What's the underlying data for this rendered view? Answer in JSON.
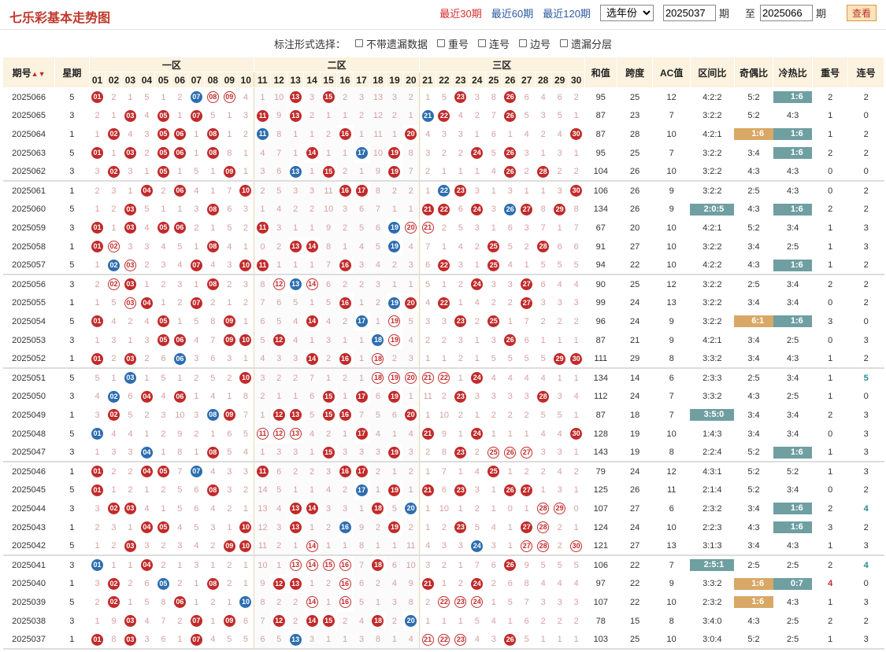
{
  "title": "七乐彩基本走势图",
  "nav": {
    "recent30": "最近30期",
    "recent60": "最近60期",
    "recent120": "最近120期",
    "year": "选年份",
    "from": "2025037",
    "qi1": "期",
    "to_label": "至",
    "to": "2025066",
    "qi2": "期",
    "view": "查看"
  },
  "options": {
    "label": "标注形式选择：",
    "items": [
      "不带遗漏数据",
      "重号",
      "连号",
      "边号",
      "遗漏分层"
    ]
  },
  "header": {
    "issue": "期号",
    "week": "星期",
    "zone1": "一区",
    "zone2": "二区",
    "zone3": "三区",
    "sum": "和值",
    "span": "跨度",
    "ac": "AC值",
    "zone_ratio": "区间比",
    "odd_even": "奇偶比",
    "hot_cold": "冷热比",
    "repeat": "重号",
    "consec": "连号"
  },
  "numbers": [
    "01",
    "02",
    "03",
    "04",
    "05",
    "06",
    "07",
    "08",
    "09",
    "10",
    "11",
    "12",
    "13",
    "14",
    "15",
    "16",
    "17",
    "18",
    "19",
    "20",
    "21",
    "22",
    "23",
    "24",
    "25",
    "26",
    "27",
    "28",
    "29",
    "30"
  ],
  "rows": [
    {
      "issue": "2025066",
      "week": "5",
      "red": [
        1,
        13,
        15,
        23,
        26
      ],
      "blue": [
        7
      ],
      "open": [
        8,
        9
      ],
      "sum": "95",
      "span": "25",
      "ac": "12",
      "zr": "4:2:2",
      "oe": "5:2",
      "hc": "1:6",
      "hct": "g",
      "rep": "2",
      "con": "2"
    },
    {
      "issue": "2025065",
      "week": "3",
      "red": [
        3,
        5,
        7,
        11,
        13,
        22,
        26
      ],
      "blue": [
        21
      ],
      "open": [],
      "sum": "87",
      "span": "23",
      "ac": "7",
      "zr": "3:2:2",
      "oe": "5:2",
      "hc": "4:3",
      "rep": "1",
      "con": "0"
    },
    {
      "issue": "2025064",
      "week": "1",
      "red": [
        2,
        5,
        6,
        8,
        16,
        20,
        30
      ],
      "blue": [
        11
      ],
      "open": [],
      "sum": "87",
      "span": "28",
      "ac": "10",
      "zr": "4:2:1",
      "oe": "1:6",
      "oet": "o",
      "hc": "1:6",
      "hct": "g",
      "rep": "1",
      "con": "2"
    },
    {
      "issue": "2025063",
      "week": "5",
      "red": [
        1,
        3,
        5,
        6,
        8,
        14,
        19,
        24,
        26
      ],
      "blue": [
        17
      ],
      "open": [],
      "sum": "95",
      "span": "25",
      "ac": "7",
      "zr": "3:2:2",
      "oe": "3:4",
      "hc": "1:6",
      "hct": "g",
      "rep": "2",
      "con": "2"
    },
    {
      "issue": "2025062",
      "week": "3",
      "red": [
        2,
        5,
        9,
        15,
        19,
        26,
        28
      ],
      "blue": [
        13
      ],
      "open": [],
      "sum": "104",
      "span": "26",
      "ac": "10",
      "zr": "3:2:2",
      "oe": "4:3",
      "hc": "4:3",
      "rep": "0",
      "con": "0"
    },
    {
      "issue": "2025061",
      "week": "1",
      "red": [
        4,
        6,
        10,
        16,
        17,
        23,
        30
      ],
      "blue": [
        22
      ],
      "open": [],
      "sum": "106",
      "span": "26",
      "ac": "9",
      "zr": "3:2:2",
      "oe": "2:5",
      "hc": "4:3",
      "rep": "0",
      "con": "2"
    },
    {
      "issue": "2025060",
      "week": "5",
      "red": [
        3,
        8,
        21,
        22,
        24,
        27,
        29
      ],
      "blue": [
        26
      ],
      "open": [],
      "sum": "134",
      "span": "26",
      "ac": "9",
      "zr": "2:0:5",
      "zrt": "g",
      "oe": "4:3",
      "hc": "1:6",
      "hct": "g",
      "rep": "2",
      "con": "2"
    },
    {
      "issue": "2025059",
      "week": "3",
      "red": [
        1,
        3,
        5,
        6,
        11
      ],
      "blue": [
        19
      ],
      "open": [
        20,
        21
      ],
      "sum": "67",
      "span": "20",
      "ac": "10",
      "zr": "4:2:1",
      "oe": "5:2",
      "hc": "3:4",
      "rep": "1",
      "con": "3"
    },
    {
      "issue": "2025058",
      "week": "1",
      "red": [
        1,
        8,
        13,
        14,
        25,
        28
      ],
      "blue": [
        19
      ],
      "open": [
        2
      ],
      "sum": "91",
      "span": "27",
      "ac": "10",
      "zr": "3:2:2",
      "oe": "3:4",
      "hc": "2:5",
      "rep": "1",
      "con": "3"
    },
    {
      "issue": "2025057",
      "week": "5",
      "red": [
        7,
        10,
        11,
        16,
        22,
        25
      ],
      "blue": [
        2
      ],
      "open": [
        3
      ],
      "sum": "94",
      "span": "22",
      "ac": "10",
      "zr": "4:2:2",
      "oe": "4:3",
      "hc": "1:6",
      "hct": "g",
      "rep": "1",
      "con": "2"
    },
    {
      "issue": "2025056",
      "week": "3",
      "red": [
        3,
        8,
        24,
        27
      ],
      "blue": [
        13
      ],
      "open": [
        2,
        12,
        14
      ],
      "sum": "90",
      "span": "25",
      "ac": "12",
      "zr": "3:2:2",
      "oe": "2:5",
      "hc": "3:4",
      "rep": "2",
      "con": "2"
    },
    {
      "issue": "2025055",
      "week": "1",
      "red": [
        4,
        7,
        16,
        20,
        22,
        27
      ],
      "blue": [
        19
      ],
      "open": [
        3
      ],
      "sum": "99",
      "span": "24",
      "ac": "13",
      "zr": "3:2:2",
      "oe": "3:4",
      "hc": "3:4",
      "rep": "0",
      "con": "2"
    },
    {
      "issue": "2025054",
      "week": "5",
      "red": [
        1,
        5,
        9,
        14,
        23,
        25
      ],
      "blue": [
        17
      ],
      "open": [
        19
      ],
      "sum": "96",
      "span": "24",
      "ac": "9",
      "zr": "3:2:2",
      "oe": "6:1",
      "oet": "o",
      "hc": "1:6",
      "hct": "g",
      "rep": "3",
      "con": "0"
    },
    {
      "issue": "2025053",
      "week": "3",
      "red": [
        5,
        6,
        9,
        10,
        12,
        26
      ],
      "blue": [
        18
      ],
      "open": [
        19
      ],
      "sum": "87",
      "span": "21",
      "ac": "9",
      "zr": "4:2:1",
      "oe": "3:4",
      "hc": "2:5",
      "rep": "0",
      "con": "3"
    },
    {
      "issue": "2025052",
      "week": "1",
      "red": [
        1,
        3,
        14,
        16,
        29,
        30
      ],
      "blue": [
        6
      ],
      "open": [
        18
      ],
      "sum": "111",
      "span": "29",
      "ac": "8",
      "zr": "3:3:2",
      "oe": "3:4",
      "hc": "4:3",
      "rep": "1",
      "con": "2"
    },
    {
      "issue": "2025051",
      "week": "5",
      "red": [
        10,
        24
      ],
      "blue": [
        3
      ],
      "open": [
        18,
        19,
        20,
        21,
        22
      ],
      "sum": "134",
      "span": "14",
      "ac": "6",
      "zr": "2:3:3",
      "oe": "2:5",
      "hc": "3:4",
      "rep": "1",
      "con": "5",
      "cont": "t"
    },
    {
      "issue": "2025050",
      "week": "3",
      "red": [
        4,
        6,
        15,
        17,
        19,
        23,
        28
      ],
      "blue": [
        2
      ],
      "open": [],
      "sum": "112",
      "span": "24",
      "ac": "7",
      "zr": "3:3:2",
      "oe": "4:3",
      "hc": "2:5",
      "rep": "1",
      "con": "0"
    },
    {
      "issue": "2025049",
      "week": "1",
      "red": [
        2,
        9,
        12,
        13,
        15,
        16,
        20
      ],
      "blue": [
        8
      ],
      "open": [],
      "sum": "87",
      "span": "18",
      "ac": "7",
      "zr": "3:5:0",
      "zrt": "g",
      "oe": "3:4",
      "hc": "3:4",
      "rep": "2",
      "con": "3"
    },
    {
      "issue": "2025048",
      "week": "5",
      "red": [
        17,
        21,
        24,
        30
      ],
      "blue": [
        1
      ],
      "open": [
        11,
        12,
        13
      ],
      "sum": "128",
      "span": "19",
      "ac": "10",
      "zr": "1:4:3",
      "oe": "3:4",
      "hc": "3:4",
      "rep": "0",
      "con": "3"
    },
    {
      "issue": "2025047",
      "week": "3",
      "red": [
        8,
        15,
        19,
        23
      ],
      "blue": [
        4
      ],
      "open": [
        25,
        26,
        27
      ],
      "sum": "143",
      "span": "19",
      "ac": "8",
      "zr": "2:2:4",
      "oe": "5:2",
      "hc": "1:6",
      "hct": "g",
      "rep": "1",
      "con": "3"
    },
    {
      "issue": "2025046",
      "week": "1",
      "red": [
        1,
        4,
        5,
        11,
        16,
        17,
        25
      ],
      "blue": [
        7
      ],
      "open": [],
      "sum": "79",
      "span": "24",
      "ac": "12",
      "zr": "4:3:1",
      "oe": "5:2",
      "hc": "5:2",
      "rep": "1",
      "con": "3"
    },
    {
      "issue": "2025045",
      "week": "5",
      "red": [
        1,
        8,
        19,
        21,
        23,
        26,
        27
      ],
      "blue": [
        17
      ],
      "open": [],
      "sum": "125",
      "span": "26",
      "ac": "11",
      "zr": "2:1:4",
      "oe": "5:2",
      "hc": "3:4",
      "rep": "0",
      "con": "2"
    },
    {
      "issue": "2025044",
      "week": "3",
      "red": [
        2,
        3,
        13,
        14,
        18
      ],
      "blue": [
        20
      ],
      "open": [
        28,
        29
      ],
      "sum": "107",
      "span": "27",
      "ac": "6",
      "zr": "2:3:2",
      "oe": "3:4",
      "hc": "1:6",
      "hct": "g",
      "rep": "2",
      "con": "4",
      "cont": "t"
    },
    {
      "issue": "2025043",
      "week": "1",
      "red": [
        4,
        5,
        10,
        13,
        19,
        23,
        27
      ],
      "blue": [
        16
      ],
      "open": [
        28
      ],
      "sum": "124",
      "span": "24",
      "ac": "10",
      "zr": "2:2:3",
      "oe": "4:3",
      "hc": "1:6",
      "hct": "g",
      "rep": "3",
      "con": "2"
    },
    {
      "issue": "2025042",
      "week": "5",
      "red": [
        3,
        9,
        10
      ],
      "blue": [
        24
      ],
      "open": [
        14,
        27,
        28,
        30
      ],
      "sum": "121",
      "span": "27",
      "ac": "13",
      "zr": "3:1:3",
      "oe": "3:4",
      "hc": "4:3",
      "rep": "1",
      "con": "3"
    },
    {
      "issue": "2025041",
      "week": "3",
      "red": [
        4,
        18,
        26
      ],
      "blue": [
        1
      ],
      "open": [
        13,
        14,
        15,
        16
      ],
      "sum": "106",
      "span": "22",
      "ac": "7",
      "zr": "2:5:1",
      "zrt": "g",
      "oe": "2:5",
      "hc": "2:5",
      "rep": "2",
      "con": "4",
      "cont": "t"
    },
    {
      "issue": "2025040",
      "week": "1",
      "red": [
        2,
        8,
        12,
        13,
        21,
        24
      ],
      "blue": [
        5
      ],
      "open": [
        16
      ],
      "sum": "97",
      "span": "22",
      "ac": "9",
      "zr": "3:3:2",
      "oe": "1:6",
      "oet": "o",
      "hc": "0:7",
      "hct": "g",
      "rep": "4",
      "rept": "r",
      "con": "0"
    },
    {
      "issue": "2025039",
      "week": "5",
      "red": [
        2,
        6
      ],
      "blue": [
        10
      ],
      "open": [
        14,
        16,
        22,
        23,
        24
      ],
      "sum": "107",
      "span": "22",
      "ac": "10",
      "zr": "2:3:2",
      "oe": "1:6",
      "oet": "o",
      "hc": "4:3",
      "rep": "1",
      "con": "3"
    },
    {
      "issue": "2025038",
      "week": "3",
      "red": [
        3,
        7,
        9,
        12,
        14,
        15,
        18
      ],
      "blue": [
        20
      ],
      "open": [],
      "sum": "78",
      "span": "15",
      "ac": "8",
      "zr": "3:4:0",
      "oe": "4:3",
      "hc": "2:5",
      "rep": "2",
      "con": "2"
    },
    {
      "issue": "2025037",
      "week": "1",
      "red": [
        1,
        3,
        7,
        26
      ],
      "blue": [
        13
      ],
      "open": [
        21,
        22,
        23
      ],
      "sum": "103",
      "span": "25",
      "ac": "10",
      "zr": "3:0:4",
      "oe": "5:2",
      "hc": "2:5",
      "rep": "1",
      "con": "3"
    }
  ],
  "miss": [
    "1 2 1 5 1 2 0 0 0 4 1 10 0 3 0 2 3 13 3 2 1 5 0 3 8 0 6 4 6 2",
    "2 1 0 4 0 1 0 5 1 3 0 9 0 2 1 1 2 12 2 1 0 0 4 2 7 0 5 3 5 1",
    "1 0 4 3 0 0 1 0 1 2 0 8 1 1 2 0 1 11 1 0 4 3 3 1 6 1 4 2 4 0",
    "0 1 0 2 0 0 1 0 8 1 4 7 1 0 1 1 0 10 0 8 3 2 2 0 5 0 3 1 3 1",
    "3 0 3 1 0 1 5 1 0 1 3 6 0 1 0 2 1 9 0 7 2 1 1 1 4 0 2 0 2 2",
    "2 3 1 0 2 0 4 1 7 0 2 5 3 3 11 0 0 8 2 2 1 0 0 3 1 3 1 1 3 0",
    "1 2 0 5 1 1 3 0 6 3 1 4 2 2 10 3 6 7 1 1 0 0 6 0 3 0 0 8 0 8",
    "0 1 0 4 0 0 2 1 5 2 0 3 1 1 9 2 5 6 0 0 0 2 5 3 1 6 3 7 1 7",
    "0 0 3 3 4 5 1 0 4 1 0 2 0 0 8 1 4 5 0 4 7 1 4 2 0 5 2 0 6 6",
    "1 0 0 2 3 4 0 4 3 0 0 1 1 1 7 0 3 4 2 3 6 0 3 1 0 4 1 5 5 5",
    "2 0 0 1 2 3 1 0 2 3 8 0 0 0 6 2 2 3 1 1 5 1 2 0 3 3 0 6 4 4",
    "1 5 0 0 1 2 0 2 1 2 7 6 5 1 5 0 1 2 0 0 4 0 1 4 2 2 0 3 3 3",
    "0 4 2 4 0 1 5 8 0 1 6 5 4 0 4 2 0 1 0 5 3 3 0 2 0 1 7 2 2 2",
    "1 3 1 3 0 0 4 7 0 0 5 0 4 1 3 1 1 0 0 4 2 2 3 1 3 0 6 1 1 1",
    "0 2 0 2 6 0 3 6 3 1 4 3 3 0 2 0 1 0 2 3 1 1 2 1 5 5 5 5 0 0",
    "5 1 0 1 5 1 2 5 2 0 3 2 2 7 1 2 1 0 0 0 0 0 1 0 4 4 4 4 1 1",
    "4 0 6 0 4 0 1 4 1 8 2 1 1 6 0 1 0 6 0 1 11 2 0 3 3 3 3 0 3 4",
    "3 0 5 2 3 10 3 0 0 7 1 0 0 5 0 0 7 5 6 0 1 10 2 1 2 2 2 5 5 1",
    "0 4 4 1 2 9 2 1 6 5 0 0 0 4 2 1 0 4 1 4 0 9 1 0 1 1 1 4 4 0",
    "1 3 3 0 1 8 1 0 5 4 1 3 3 1 0 3 3 3 0 3 2 8 0 2 0 0 0 3 3 1",
    "0 2 2 0 0 7 0 4 3 3 0 6 2 2 3 0 0 2 1 2 1 7 1 4 0 1 2 2 4 2",
    "0 1 2 1 2 5 6 0 3 2 14 5 1 1 4 2 0 1 0 1 0 6 0 3 1 0 0 1 3 1",
    "3 0 0 4 1 5 6 4 2 1 13 4 0 0 3 3 1 0 5 0 1 10 1 2 1 0 1 0 0 0",
    "2 3 1 0 0 4 5 3 1 0 12 3 0 1 2 0 9 2 0 2 1 2 0 5 4 1 0 0 2 1",
    "1 2 0 3 2 3 4 2 0 0 11 2 1 0 1 1 8 1 1 11 4 3 3 0 3 1 0 0 2 0",
    "0 1 1 0 2 1 3 1 2 1 10 1 0 0 0 0 7 0 6 10 3 2 1 7 6 0 9 5 5 5",
    "3 0 2 6 0 2 1 0 2 1 9 0 0 1 2 0 6 2 4 9 0 1 2 0 2 6 8 4 4 4",
    "2 0 1 5 8 0 1 2 1 0 8 2 2 0 1 0 5 1 3 8 2 0 0 0 1 5 7 3 3 3",
    "1 9 0 4 7 2 0 1 0 6 7 0 2 0 0 2 4 0 2 0 1 1 1 5 4 1 6 2 2 2",
    "0 8 0 3 6 1 0 4 5 5 6 5 0 3 1 1 3 8 1 4 0 0 0 4 3 0 5 1 1 1"
  ]
}
